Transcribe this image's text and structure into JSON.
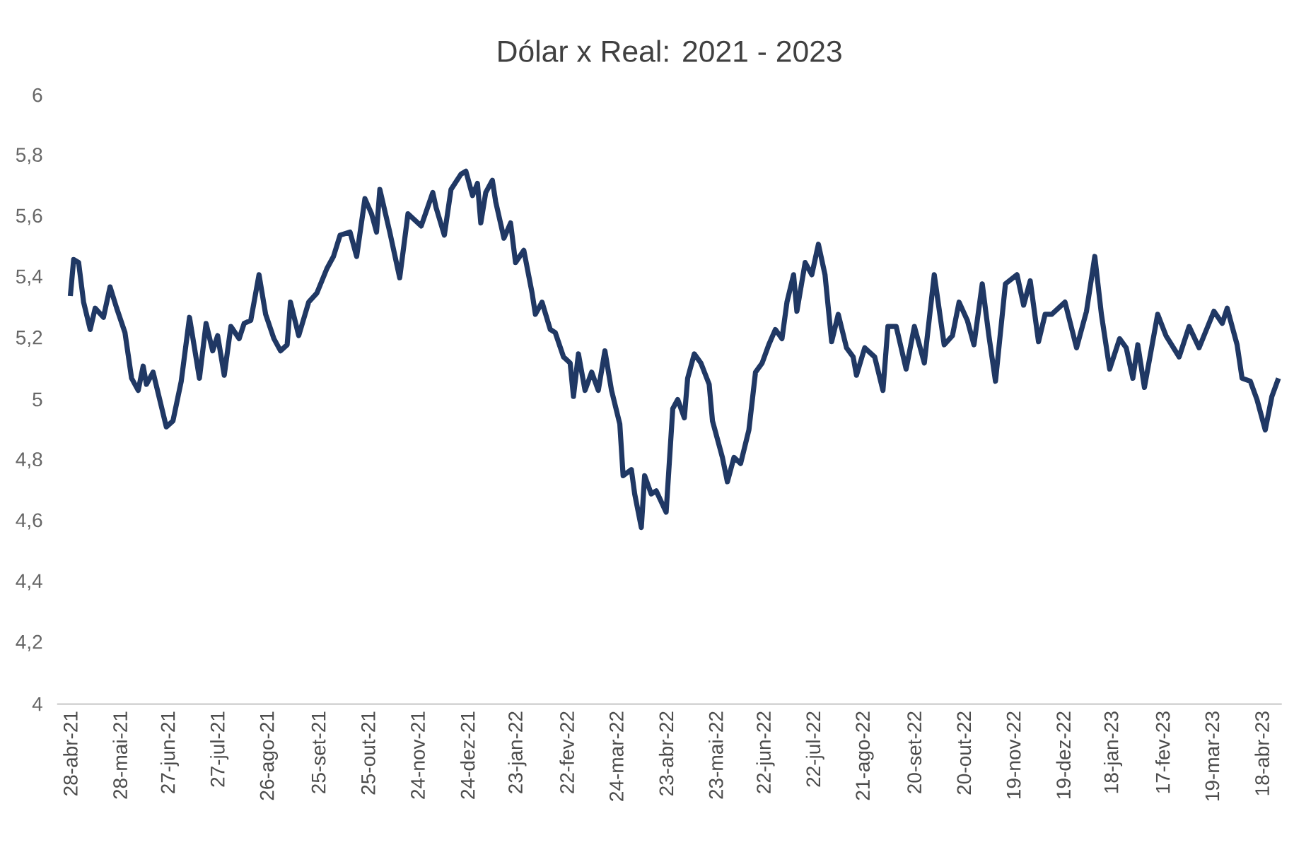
{
  "chart_data": {
    "type": "line",
    "title": "Dólar x Real: 2021 - 2023",
    "x": [
      "2021-04-28",
      "2021-04-30",
      "2021-05-03",
      "2021-05-06",
      "2021-05-10",
      "2021-05-13",
      "2021-05-18",
      "2021-05-22",
      "2021-05-26",
      "2021-05-31",
      "2021-06-04",
      "2021-06-08",
      "2021-06-11",
      "2021-06-13",
      "2021-06-17",
      "2021-06-21",
      "2021-06-25",
      "2021-06-29",
      "2021-07-04",
      "2021-07-09",
      "2021-07-15",
      "2021-07-19",
      "2021-07-23",
      "2021-07-26",
      "2021-07-30",
      "2021-08-03",
      "2021-08-08",
      "2021-08-11",
      "2021-08-15",
      "2021-08-20",
      "2021-08-24",
      "2021-08-29",
      "2021-09-02",
      "2021-09-06",
      "2021-09-08",
      "2021-09-13",
      "2021-09-19",
      "2021-09-24",
      "2021-09-30",
      "2021-10-04",
      "2021-10-08",
      "2021-10-14",
      "2021-10-18",
      "2021-10-23",
      "2021-10-27",
      "2021-10-30",
      "2021-11-01",
      "2021-11-07",
      "2021-11-13",
      "2021-11-18",
      "2021-11-26",
      "2021-12-03",
      "2021-12-05",
      "2021-12-10",
      "2021-12-14",
      "2021-12-20",
      "2021-12-23",
      "2021-12-27",
      "2021-12-30",
      "2022-01-01",
      "2022-01-04",
      "2022-01-08",
      "2022-01-10",
      "2022-01-15",
      "2022-01-19",
      "2022-01-22",
      "2022-01-27",
      "2022-02-01",
      "2022-02-03",
      "2022-02-07",
      "2022-02-12",
      "2022-02-15",
      "2022-02-20",
      "2022-02-24",
      "2022-02-26",
      "2022-03-01",
      "2022-03-05",
      "2022-03-09",
      "2022-03-13",
      "2022-03-17",
      "2022-03-21",
      "2022-03-26",
      "2022-03-28",
      "2022-04-02",
      "2022-04-04",
      "2022-04-08",
      "2022-04-10",
      "2022-04-14",
      "2022-04-17",
      "2022-04-23",
      "2022-04-27",
      "2022-04-30",
      "2022-05-04",
      "2022-05-06",
      "2022-05-10",
      "2022-05-14",
      "2022-05-19",
      "2022-05-21",
      "2022-05-27",
      "2022-05-30",
      "2022-06-03",
      "2022-06-07",
      "2022-06-12",
      "2022-06-16",
      "2022-06-20",
      "2022-06-24",
      "2022-06-28",
      "2022-07-02",
      "2022-07-05",
      "2022-07-09",
      "2022-07-11",
      "2022-07-16",
      "2022-07-20",
      "2022-07-24",
      "2022-07-28",
      "2022-08-01",
      "2022-08-05",
      "2022-08-10",
      "2022-08-14",
      "2022-08-16",
      "2022-08-21",
      "2022-08-27",
      "2022-09-01",
      "2022-09-04",
      "2022-09-09",
      "2022-09-15",
      "2022-09-20",
      "2022-09-26",
      "2022-10-02",
      "2022-10-08",
      "2022-10-13",
      "2022-10-17",
      "2022-10-22",
      "2022-10-26",
      "2022-10-31",
      "2022-11-04",
      "2022-11-08",
      "2022-11-14",
      "2022-11-21",
      "2022-11-25",
      "2022-11-29",
      "2022-12-04",
      "2022-12-08",
      "2022-12-12",
      "2022-12-20",
      "2022-12-27",
      "2023-01-02",
      "2023-01-07",
      "2023-01-11",
      "2023-01-16",
      "2023-01-22",
      "2023-01-26",
      "2023-01-30",
      "2023-02-02",
      "2023-02-06",
      "2023-02-14",
      "2023-02-19",
      "2023-02-27",
      "2023-03-05",
      "2023-03-11",
      "2023-03-20",
      "2023-03-25",
      "2023-03-28",
      "2023-04-03",
      "2023-04-06",
      "2023-04-11",
      "2023-04-15",
      "2023-04-20",
      "2023-04-24",
      "2023-04-28"
    ],
    "series": [
      {
        "color": "#203864",
        "values": [
          5.34,
          5.46,
          5.45,
          5.32,
          5.23,
          5.3,
          5.27,
          5.37,
          5.3,
          5.22,
          5.07,
          5.03,
          5.11,
          5.05,
          5.09,
          5.0,
          4.91,
          4.93,
          5.06,
          5.27,
          5.07,
          5.25,
          5.16,
          5.21,
          5.08,
          5.24,
          5.2,
          5.25,
          5.26,
          5.41,
          5.28,
          5.2,
          5.16,
          5.18,
          5.32,
          5.21,
          5.32,
          5.35,
          5.43,
          5.47,
          5.54,
          5.55,
          5.47,
          5.66,
          5.61,
          5.55,
          5.69,
          5.55,
          5.4,
          5.61,
          5.57,
          5.68,
          5.63,
          5.54,
          5.69,
          5.74,
          5.75,
          5.67,
          5.71,
          5.58,
          5.68,
          5.72,
          5.65,
          5.53,
          5.58,
          5.45,
          5.49,
          5.35,
          5.28,
          5.32,
          5.23,
          5.22,
          5.14,
          5.12,
          5.01,
          5.15,
          5.03,
          5.09,
          5.03,
          5.16,
          5.03,
          4.92,
          4.75,
          4.77,
          4.69,
          4.58,
          4.75,
          4.69,
          4.7,
          4.63,
          4.97,
          5.0,
          4.94,
          5.07,
          5.15,
          5.12,
          5.05,
          4.93,
          4.81,
          4.73,
          4.81,
          4.79,
          4.9,
          5.09,
          5.12,
          5.18,
          5.23,
          5.2,
          5.32,
          5.41,
          5.29,
          5.45,
          5.41,
          5.51,
          5.41,
          5.19,
          5.28,
          5.17,
          5.14,
          5.08,
          5.17,
          5.14,
          5.03,
          5.24,
          5.24,
          5.1,
          5.24,
          5.12,
          5.41,
          5.18,
          5.21,
          5.32,
          5.26,
          5.18,
          5.38,
          5.21,
          5.06,
          5.38,
          5.41,
          5.31,
          5.39,
          5.19,
          5.28,
          5.28,
          5.32,
          5.17,
          5.29,
          5.47,
          5.28,
          5.1,
          5.2,
          5.17,
          5.07,
          5.18,
          5.04,
          5.28,
          5.21,
          5.14,
          5.24,
          5.17,
          5.29,
          5.25,
          5.3,
          5.18,
          5.07,
          5.06,
          5.0,
          4.9,
          5.01,
          5.07
        ]
      }
    ],
    "xlim": [
      "2021-04-20",
      "2023-04-30"
    ],
    "xticks": [
      {
        "value": "2021-04-28",
        "label": "28-abr-21"
      },
      {
        "value": "2021-05-28",
        "label": "28-mai-21"
      },
      {
        "value": "2021-06-27",
        "label": "27-jun-21"
      },
      {
        "value": "2021-07-27",
        "label": "27-jul-21"
      },
      {
        "value": "2021-08-26",
        "label": "26-ago-21"
      },
      {
        "value": "2021-09-25",
        "label": "25-set-21"
      },
      {
        "value": "2021-10-25",
        "label": "25-out-21"
      },
      {
        "value": "2021-11-24",
        "label": "24-nov-21"
      },
      {
        "value": "2021-12-24",
        "label": "24-dez-21"
      },
      {
        "value": "2022-01-23",
        "label": "23-jan-22"
      },
      {
        "value": "2022-02-22",
        "label": "22-fev-22"
      },
      {
        "value": "2022-03-24",
        "label": "24-mar-22"
      },
      {
        "value": "2022-04-23",
        "label": "23-abr-22"
      },
      {
        "value": "2022-05-23",
        "label": "23-mai-22"
      },
      {
        "value": "2022-06-22",
        "label": "22-jun-22"
      },
      {
        "value": "2022-07-22",
        "label": "22-jul-22"
      },
      {
        "value": "2022-08-21",
        "label": "21-ago-22"
      },
      {
        "value": "2022-09-20",
        "label": "20-set-22"
      },
      {
        "value": "2022-10-20",
        "label": "20-out-22"
      },
      {
        "value": "2022-11-19",
        "label": "19-nov-22"
      },
      {
        "value": "2022-12-19",
        "label": "19-dez-22"
      },
      {
        "value": "2023-01-18",
        "label": "18-jan-23"
      },
      {
        "value": "2023-02-17",
        "label": "17-fev-23"
      },
      {
        "value": "2023-03-19",
        "label": "19-mar-23"
      },
      {
        "value": "2023-04-18",
        "label": "18-abr-23"
      }
    ],
    "ylim": [
      4,
      6
    ],
    "yticks": [
      4,
      {
        "value": 4.2,
        "label": "4,2"
      },
      {
        "value": 4.4,
        "label": "4,4"
      },
      {
        "value": 4.6,
        "label": "4,6"
      },
      {
        "value": 4.8,
        "label": "4,8"
      },
      5,
      {
        "value": 5.2,
        "label": "5,2"
      },
      {
        "value": 5.4,
        "label": "5,4"
      },
      {
        "value": 5.6,
        "label": "5,6"
      },
      {
        "value": 5.8,
        "label": "5,8"
      },
      6
    ]
  }
}
